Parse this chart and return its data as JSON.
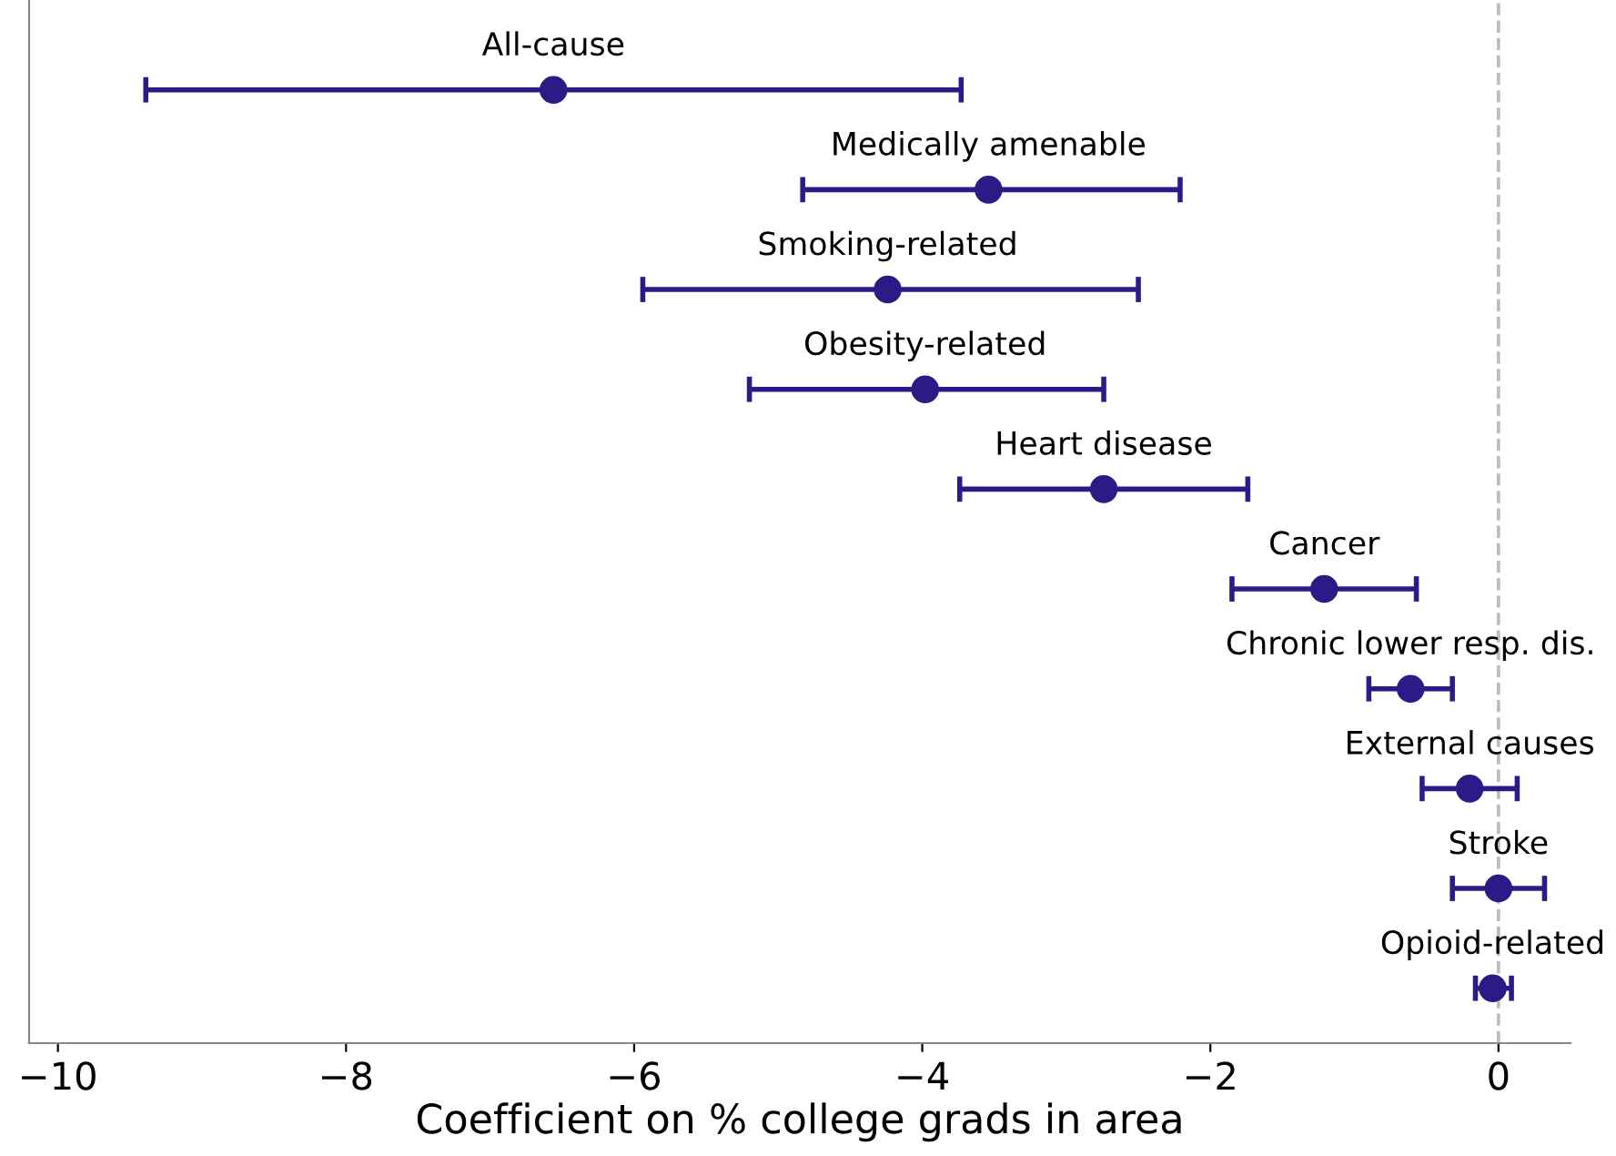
{
  "chart_data": {
    "type": "scatter",
    "orientation": "horizontal",
    "xlabel": "Coefficient on % college grads in area",
    "categories": [
      "All-cause",
      "Medically amenable",
      "Smoking-related",
      "Obesity-related",
      "Heart disease",
      "Cancer",
      "Chronic lower resp. dis.",
      "External causes",
      "Stroke",
      "Opioid-related"
    ],
    "values": [
      -6.56,
      -3.54,
      -4.24,
      -3.98,
      -2.74,
      -1.21,
      -0.61,
      -0.2,
      0.0,
      -0.04
    ],
    "errors": [
      [
        -9.39,
        -3.73
      ],
      [
        -4.83,
        -2.21
      ],
      [
        -5.94,
        -2.5
      ],
      [
        -5.2,
        -2.74
      ],
      [
        -3.74,
        -1.74
      ],
      [
        -1.85,
        -0.57
      ],
      [
        -0.9,
        -0.32
      ],
      [
        -0.53,
        0.13
      ],
      [
        -0.32,
        0.32
      ],
      [
        -0.16,
        0.09
      ]
    ],
    "color": "#2e1a87",
    "marker": "circle",
    "xlim": [
      -10.2,
      0.5
    ],
    "xticks": [
      -10,
      -8,
      -6,
      -4,
      -2,
      0
    ],
    "ref_lines": [
      {
        "axis": "x",
        "value": 0,
        "color": "#bbbbbb",
        "line_style": "dashed"
      }
    ],
    "grid": false
  }
}
